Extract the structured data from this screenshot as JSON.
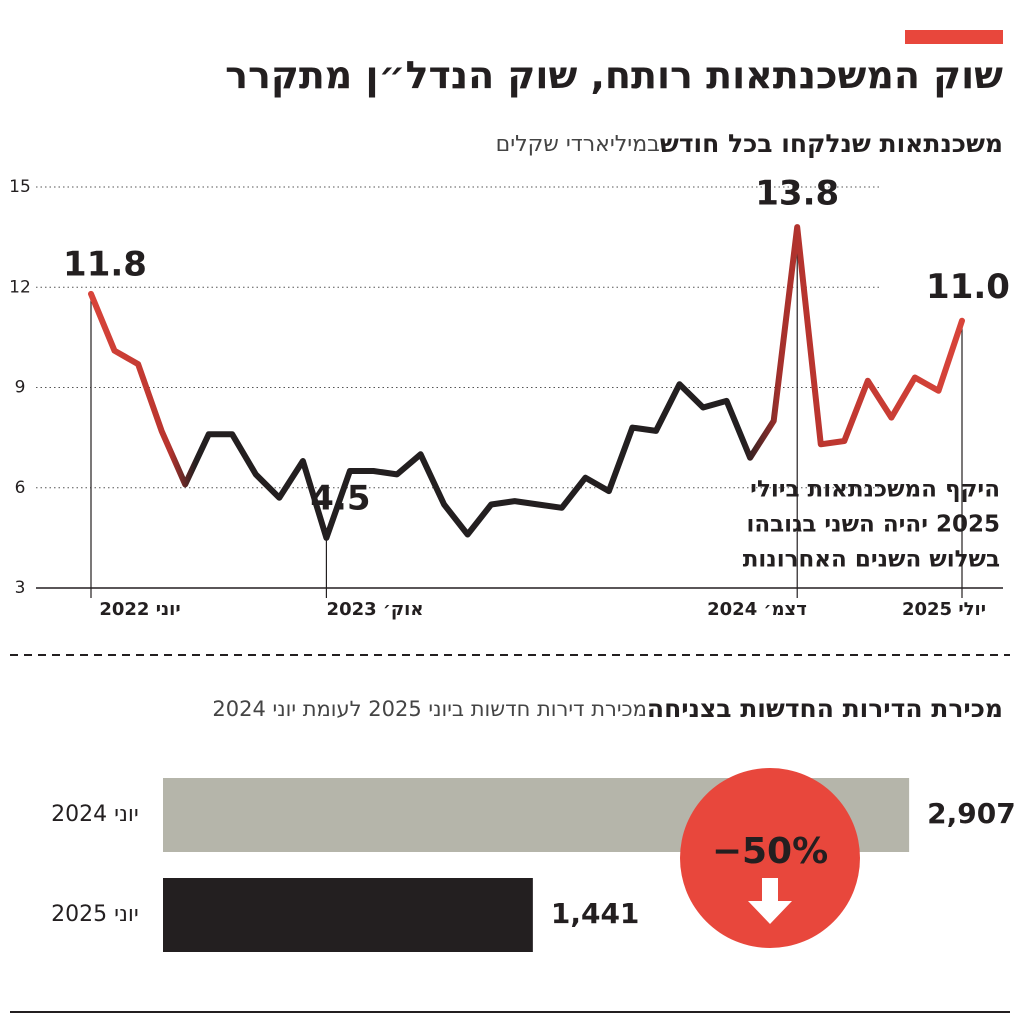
{
  "chart_data": [
    {
      "type": "line",
      "title": "שוק המשכנתאות רותח, שוק הנדל״ן מתקרר",
      "subtitle": "משכנתאות שנלקחו בכל חודש",
      "ylabel": "במיליארדי שקלים",
      "categories": [
        "יוני 2022",
        null,
        null,
        null,
        null,
        null,
        null,
        null,
        null,
        null,
        "אוק׳ 2023",
        null,
        null,
        null,
        null,
        null,
        null,
        null,
        null,
        null,
        null,
        null,
        null,
        null,
        null,
        null,
        null,
        null,
        null,
        null,
        "דצמ׳ 2024",
        null,
        null,
        null,
        null,
        null,
        null,
        "יולי 2025"
      ],
      "values": [
        11.8,
        10.1,
        9.7,
        7.7,
        6.1,
        7.6,
        7.6,
        6.4,
        5.7,
        6.8,
        4.5,
        6.5,
        6.5,
        6.4,
        7.0,
        5.5,
        4.6,
        5.5,
        5.6,
        5.5,
        5.4,
        6.3,
        5.9,
        7.8,
        7.7,
        9.1,
        8.4,
        8.6,
        6.9,
        8.0,
        13.8,
        7.3,
        7.4,
        9.2,
        8.1,
        9.3,
        8.9,
        11.0
      ],
      "value_labels": [
        "11.8",
        null,
        null,
        null,
        null,
        null,
        null,
        null,
        null,
        null,
        "4.5",
        null,
        null,
        null,
        null,
        null,
        null,
        null,
        null,
        null,
        null,
        null,
        null,
        null,
        null,
        null,
        null,
        null,
        null,
        null,
        "13.8",
        null,
        null,
        null,
        null,
        null,
        null,
        "11.0"
      ],
      "color": "#231f20",
      "highlight_color": "#e8473c",
      "ylim": [
        3,
        15
      ],
      "yticks": [
        3,
        6,
        9,
        12,
        15
      ],
      "grid": true,
      "annotation": [
        "היקף המשכנתאות ביולי",
        "2025 יהיה השני בגובהו",
        "בשלוש השנים האחרונות"
      ]
    },
    {
      "type": "hbar",
      "title": "מכירת הדירות החדשות בצניחה",
      "subtitle": "מכירת דירות חדשות ביוני 2025 לעומת יוני 2024",
      "categories": [
        "יוני 2024",
        "יוני 2025"
      ],
      "values": [
        2907,
        1441
      ],
      "value_labels": [
        "2,907",
        "1,441"
      ],
      "colors": [
        "#b5b5aa",
        "#231f20"
      ],
      "xlim": [
        0,
        3000
      ],
      "annotation": "−50%",
      "annotation_color": "#e8473c"
    }
  ]
}
